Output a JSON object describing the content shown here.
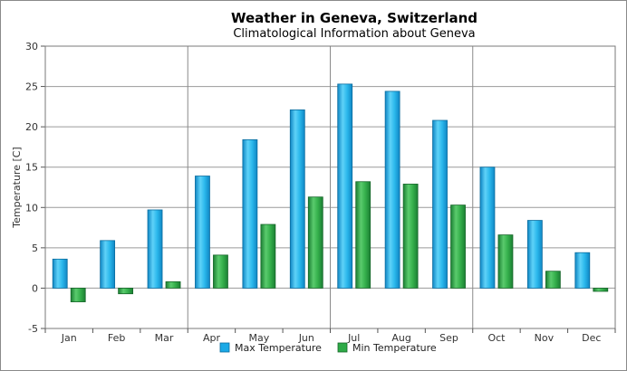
{
  "chart_data": {
    "type": "bar",
    "title": "Weather in Geneva, Switzerland",
    "subtitle": "Climatological Information about Geneva",
    "xlabel": "",
    "ylabel": "Temperature [C]",
    "ylim": [
      -5,
      30
    ],
    "yticks": [
      -5,
      0,
      5,
      10,
      15,
      20,
      25,
      30
    ],
    "grid": true,
    "legend_position": "bottom",
    "categories": [
      "Jan",
      "Feb",
      "Mar",
      "Apr",
      "May",
      "Jun",
      "Jul",
      "Aug",
      "Sep",
      "Oct",
      "Nov",
      "Dec"
    ],
    "series": [
      {
        "name": "Max Temperature",
        "color": "#1aa9e6",
        "values": [
          3.6,
          5.9,
          9.7,
          13.9,
          18.4,
          22.1,
          25.3,
          24.4,
          20.8,
          15.0,
          8.4,
          4.4
        ]
      },
      {
        "name": "Min Temperature",
        "color": "#2eaa47",
        "values": [
          -1.7,
          -0.7,
          0.8,
          4.1,
          7.9,
          11.3,
          13.2,
          12.9,
          10.3,
          6.6,
          2.1,
          -0.4
        ]
      }
    ]
  }
}
